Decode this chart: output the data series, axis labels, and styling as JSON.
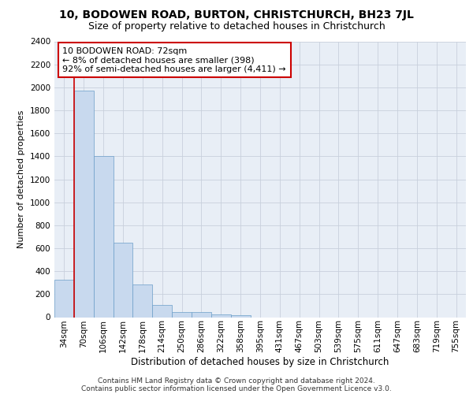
{
  "title": "10, BODOWEN ROAD, BURTON, CHRISTCHURCH, BH23 7JL",
  "subtitle": "Size of property relative to detached houses in Christchurch",
  "xlabel": "Distribution of detached houses by size in Christchurch",
  "ylabel": "Number of detached properties",
  "bar_color": "#c8d9ee",
  "bar_edge_color": "#6b9dc8",
  "grid_color": "#c8d0dc",
  "background_color": "#e8eef6",
  "annotation_box_color": "#cc0000",
  "annotation_line1": "10 BODOWEN ROAD: 72sqm",
  "annotation_line2": "← 8% of detached houses are smaller (398)",
  "annotation_line3": "92% of semi-detached houses are larger (4,411) →",
  "red_line_x": 1,
  "categories": [
    "34sqm",
    "70sqm",
    "106sqm",
    "142sqm",
    "178sqm",
    "214sqm",
    "250sqm",
    "286sqm",
    "322sqm",
    "358sqm",
    "395sqm",
    "431sqm",
    "467sqm",
    "503sqm",
    "539sqm",
    "575sqm",
    "611sqm",
    "647sqm",
    "683sqm",
    "719sqm",
    "755sqm"
  ],
  "values": [
    325,
    1970,
    1400,
    650,
    285,
    105,
    48,
    42,
    25,
    18,
    0,
    0,
    0,
    0,
    0,
    0,
    0,
    0,
    0,
    0,
    0
  ],
  "ylim": [
    0,
    2400
  ],
  "yticks": [
    0,
    200,
    400,
    600,
    800,
    1000,
    1200,
    1400,
    1600,
    1800,
    2000,
    2200,
    2400
  ],
  "footer_line1": "Contains HM Land Registry data © Crown copyright and database right 2024.",
  "footer_line2": "Contains public sector information licensed under the Open Government Licence v3.0.",
  "title_fontsize": 10,
  "subtitle_fontsize": 9,
  "xlabel_fontsize": 8.5,
  "ylabel_fontsize": 8,
  "tick_fontsize": 7.5,
  "footer_fontsize": 6.5,
  "annotation_fontsize": 8
}
